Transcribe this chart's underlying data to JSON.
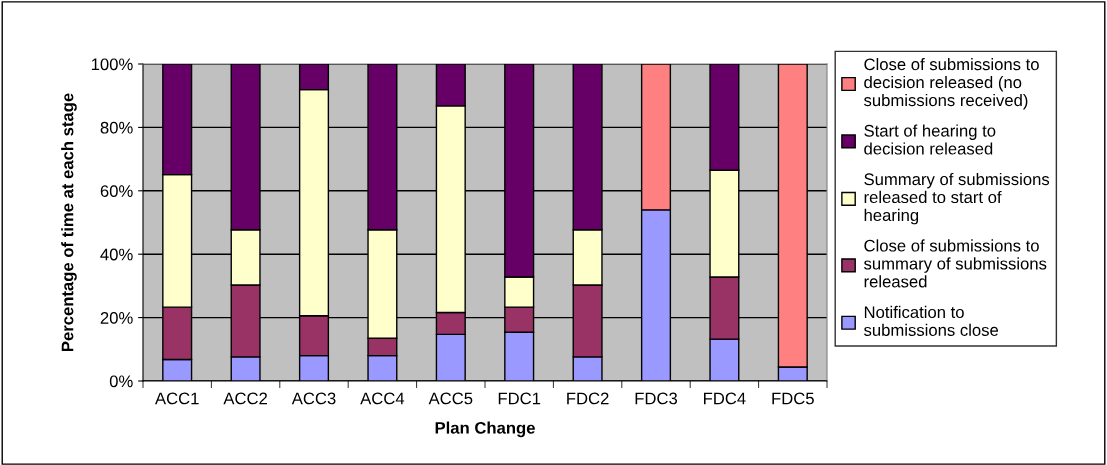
{
  "chart_data": {
    "type": "bar",
    "stacked": true,
    "xlabel": "Plan Change",
    "ylabel": "Percentage of time at each stage",
    "categories": [
      "ACC1",
      "ACC2",
      "ACC3",
      "ACC4",
      "ACC5",
      "FDC1",
      "FDC2",
      "FDC3",
      "FDC4",
      "FDC5"
    ],
    "series": [
      {
        "name": "Notification to submissions close",
        "color": "#9999ff",
        "values": [
          6.8,
          7.6,
          8.0,
          8.0,
          14.7,
          15.4,
          7.6,
          54.0,
          13.2,
          4.4
        ]
      },
      {
        "name": "Close of submissions to summary of submissions released",
        "color": "#993366",
        "values": [
          16.5,
          22.7,
          12.6,
          5.5,
          6.9,
          7.9,
          22.7,
          null,
          19.6,
          null
        ]
      },
      {
        "name": "Summary of submissions released to start of hearing",
        "color": "#ffffcc",
        "values": [
          41.8,
          17.4,
          71.3,
          34.2,
          65.2,
          9.5,
          17.4,
          null,
          33.7,
          null
        ]
      },
      {
        "name": "Start of hearing to decision released",
        "color": "#660066",
        "values": [
          34.9,
          52.3,
          8.1,
          52.3,
          13.2,
          67.2,
          52.3,
          null,
          33.5,
          null
        ]
      },
      {
        "name": "Close of submissions to decision released (no submissions received)",
        "color": "#ff8080",
        "values": [
          null,
          null,
          null,
          null,
          null,
          null,
          null,
          46.0,
          null,
          95.6
        ]
      }
    ],
    "ylim": [
      0,
      100
    ],
    "yticks": [
      {
        "value": 0,
        "label": "0%"
      },
      {
        "value": 20,
        "label": "20%"
      },
      {
        "value": 40,
        "label": "40%"
      },
      {
        "value": 60,
        "label": "60%"
      },
      {
        "value": 80,
        "label": "80%"
      },
      {
        "value": 100,
        "label": "100%"
      }
    ],
    "grid": "y",
    "legend": "right"
  }
}
